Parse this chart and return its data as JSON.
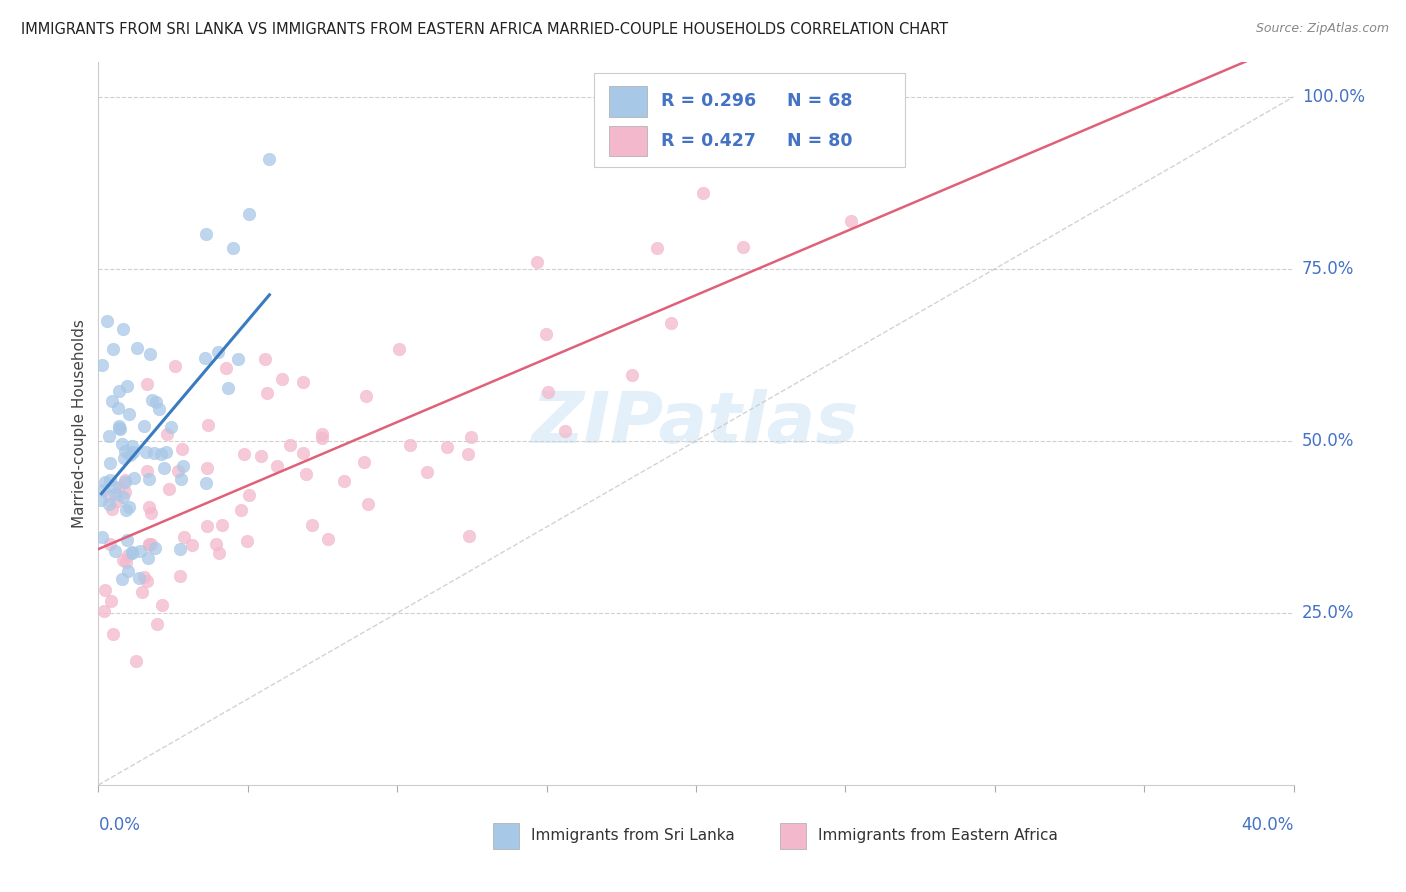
{
  "title": "IMMIGRANTS FROM SRI LANKA VS IMMIGRANTS FROM EASTERN AFRICA MARRIED-COUPLE HOUSEHOLDS CORRELATION CHART",
  "source": "Source: ZipAtlas.com",
  "ylabel": "Married-couple Households",
  "sri_lanka_R": 0.296,
  "sri_lanka_N": 68,
  "eastern_africa_R": 0.427,
  "eastern_africa_N": 80,
  "sri_lanka_color": "#a8c8e8",
  "eastern_africa_color": "#f4b8cc",
  "sri_lanka_line_color": "#3a7abf",
  "eastern_africa_line_color": "#e0607a",
  "diagonal_color": "#c8c8c8",
  "grid_color": "#d0d0d0",
  "axis_label_color": "#4472c4",
  "title_color": "#222222",
  "source_color": "#888888",
  "legend_text_color": "#4472c4",
  "bottom_legend_text_color": "#333333",
  "xlim": [
    0.0,
    0.4
  ],
  "ylim": [
    0.0,
    1.05
  ],
  "xtick_left": "0.0%",
  "xtick_right": "40.0%",
  "ytick_labels": [
    "100.0%",
    "75.0%",
    "50.0%",
    "25.0%"
  ],
  "ytick_values": [
    1.0,
    0.75,
    0.5,
    0.25
  ],
  "bottom_legend_left": "Immigrants from Sri Lanka",
  "bottom_legend_right": "Immigrants from Eastern Africa",
  "watermark": "ZIPatlas",
  "watermark_color": "#cde4f5",
  "watermark_alpha": 0.55
}
